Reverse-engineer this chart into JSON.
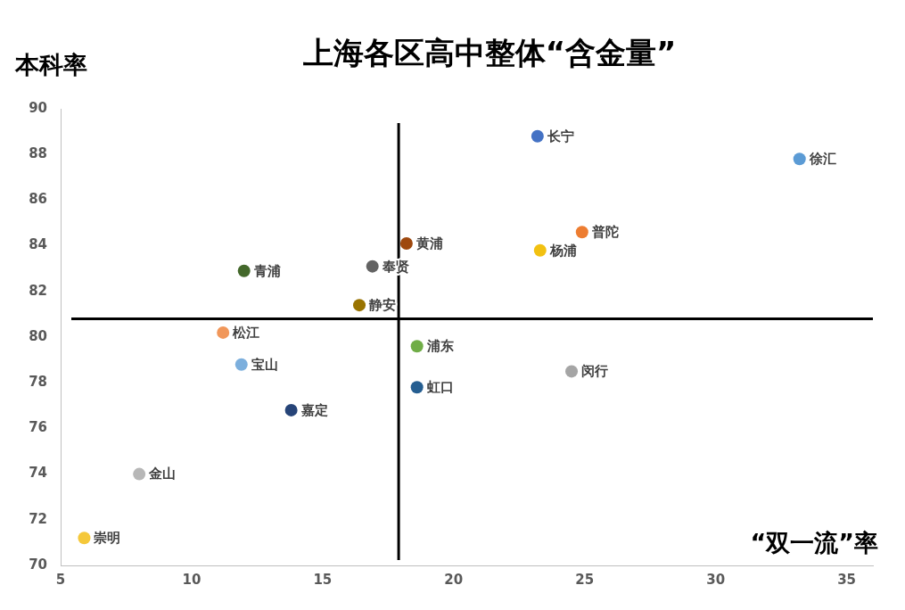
{
  "chart_data": {
    "type": "scatter",
    "title": "上海各区高中整体“含金量”",
    "xlabel": "“双一流”率",
    "ylabel": "本科率",
    "series": [
      {
        "name": "长宁",
        "color": "#4472c4",
        "x": [
          23.2
        ],
        "values": [
          88.8
        ]
      },
      {
        "name": "徐汇",
        "color": "#5b9bd5",
        "x": [
          33.2
        ],
        "values": [
          87.8
        ]
      },
      {
        "name": "普陀",
        "color": "#ed7d31",
        "x": [
          24.9
        ],
        "values": [
          84.6
        ]
      },
      {
        "name": "杨浦",
        "color": "#f2c111",
        "x": [
          23.3
        ],
        "values": [
          83.8
        ]
      },
      {
        "name": "黄浦",
        "color": "#9e480e",
        "x": [
          18.2
        ],
        "values": [
          84.1
        ]
      },
      {
        "name": "奉贤",
        "color": "#636363",
        "x": [
          16.9
        ],
        "values": [
          83.1
        ]
      },
      {
        "name": "青浦",
        "color": "#43682b",
        "x": [
          12.0
        ],
        "values": [
          82.9
        ]
      },
      {
        "name": "静安",
        "color": "#997300",
        "x": [
          16.4
        ],
        "values": [
          81.4
        ]
      },
      {
        "name": "松江",
        "color": "#f1975a",
        "x": [
          11.2
        ],
        "values": [
          80.2
        ]
      },
      {
        "name": "浦东",
        "color": "#70ad47",
        "x": [
          18.6
        ],
        "values": [
          79.6
        ]
      },
      {
        "name": "宝山",
        "color": "#7cafdd",
        "x": [
          11.9
        ],
        "values": [
          78.8
        ]
      },
      {
        "name": "闵行",
        "color": "#a5a5a5",
        "x": [
          24.5
        ],
        "values": [
          78.5
        ]
      },
      {
        "name": "虹口",
        "color": "#255e91",
        "x": [
          18.6
        ],
        "values": [
          77.8
        ]
      },
      {
        "name": "嘉定",
        "color": "#264478",
        "x": [
          13.8
        ],
        "values": [
          76.8
        ]
      },
      {
        "name": "金山",
        "color": "#b7b7b7",
        "x": [
          8.0
        ],
        "values": [
          74.0
        ]
      },
      {
        "name": "崇明",
        "color": "#f5c83a",
        "x": [
          5.9
        ],
        "values": [
          71.2
        ]
      }
    ],
    "xlim": [
      5,
      36
    ],
    "xticks": [
      5,
      10,
      15,
      20,
      25,
      30,
      35
    ],
    "ylim": [
      70,
      90
    ],
    "yticks": [
      70,
      72,
      74,
      76,
      78,
      80,
      82,
      84,
      86,
      88,
      90
    ],
    "ref_lines": [
      {
        "axis": "x",
        "value": 17.9,
        "color": "#000000"
      },
      {
        "axis": "y",
        "value": 80.8,
        "color": "#000000"
      }
    ],
    "grid": false,
    "legend": false,
    "marker": "circle"
  }
}
